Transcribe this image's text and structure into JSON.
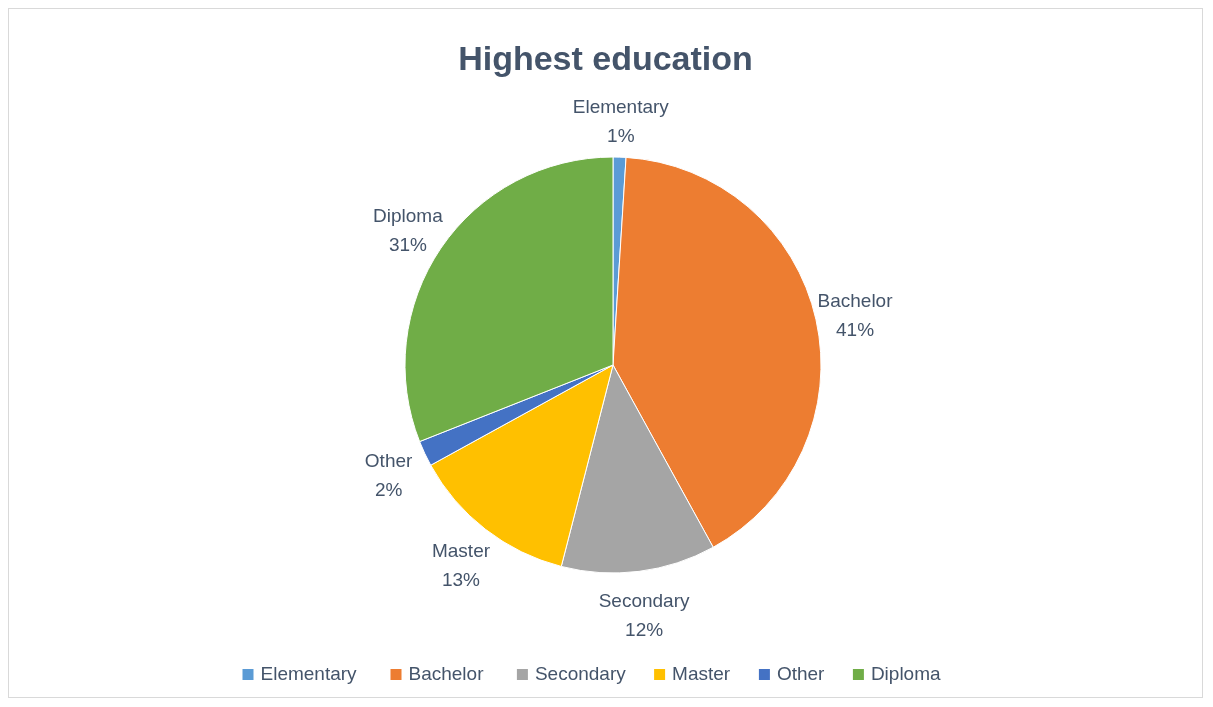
{
  "chart_data": {
    "type": "pie",
    "title": "Highest education",
    "categories": [
      "Elementary",
      "Bachelor",
      "Secondary",
      "Master",
      "Other",
      "Diploma"
    ],
    "values": [
      1,
      41,
      12,
      13,
      2,
      31
    ],
    "value_labels": [
      "1%",
      "41%",
      "12%",
      "13%",
      "2%",
      "31%"
    ],
    "colors": [
      "#5b9bd5",
      "#ed7d31",
      "#a5a5a5",
      "#ffc000",
      "#4472c4",
      "#70ad47"
    ],
    "legend": "bottom"
  }
}
